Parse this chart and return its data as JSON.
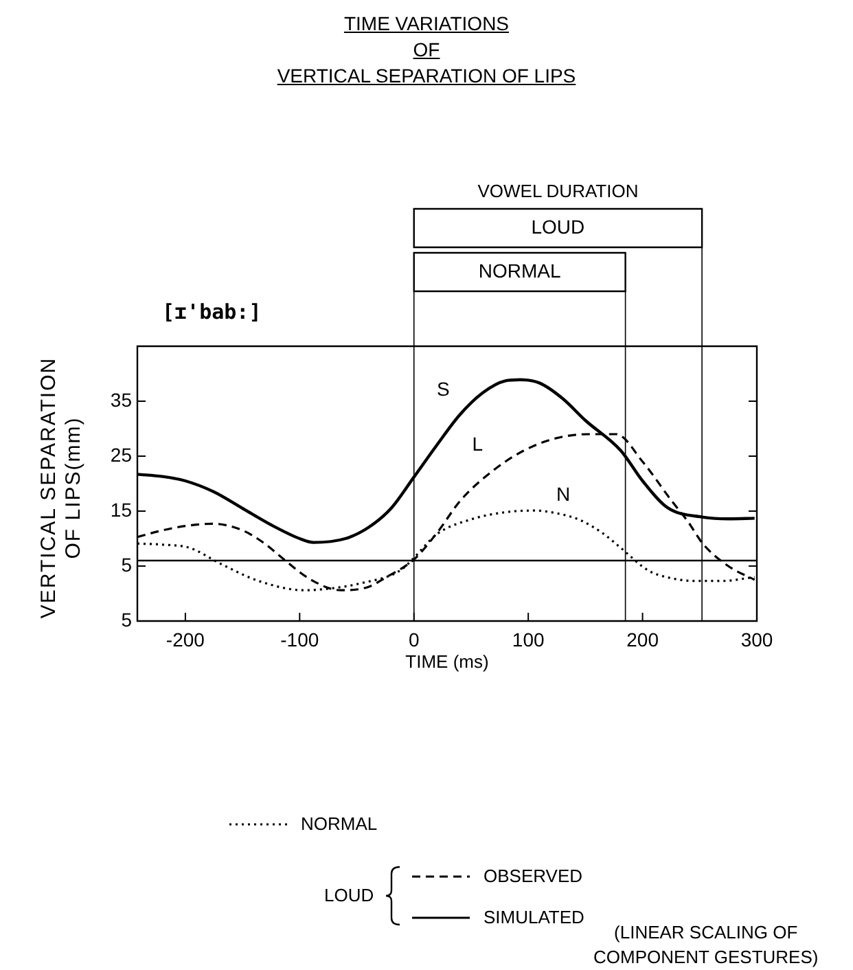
{
  "chart_data": {
    "type": "line",
    "title": "TIME VARIATIONS\nOF\nVERTICAL SEPARATION OF LIPS",
    "xlabel": "TIME (ms)",
    "ylabel": "VERTICAL SEPARATION\nOF LIPS(mm)",
    "xlim": [
      -242,
      300
    ],
    "xticks": [
      -200,
      -100,
      0,
      100,
      200,
      300
    ],
    "ylim": [
      -5,
      45
    ],
    "yticks": [
      {
        "value": -5,
        "label": "5"
      },
      5,
      15,
      25,
      35
    ],
    "grid": false,
    "legend": "bottom",
    "marker": "none",
    "series": [
      {
        "name": "NORMAL",
        "color": "#000000",
        "line_style": "dotted",
        "x": [
          -242,
          -220,
          -196,
          -169,
          -136,
          -96,
          -70,
          -48,
          -12,
          0,
          20,
          50,
          80,
          105,
          125,
          145,
          165,
          181,
          205,
          225,
          246,
          270,
          298
        ],
        "values": [
          9.1,
          8.9,
          8.3,
          5.4,
          2.3,
          0.6,
          1,
          1.8,
          4.2,
          6.5,
          10.8,
          13.5,
          14.8,
          15.1,
          14.6,
          13.4,
          11,
          8.3,
          4.2,
          2.8,
          2.3,
          2.3,
          3
        ]
      },
      {
        "name": "OBSERVED",
        "color": "#000000",
        "line_style": "dashed",
        "x": [
          -242,
          -220,
          -200,
          -176,
          -150,
          -130,
          -116,
          -90,
          -64,
          -40,
          -24,
          0,
          20,
          41,
          70,
          96,
          125,
          153,
          177,
          200,
          225,
          240,
          253,
          275,
          298
        ],
        "values": [
          10.3,
          11.5,
          12.3,
          12.7,
          11.5,
          9,
          6.6,
          2.5,
          0.6,
          1.2,
          3,
          6.2,
          11,
          17,
          22.5,
          26,
          28.3,
          29,
          29,
          24,
          17,
          13,
          9,
          5,
          2.5
        ]
      },
      {
        "name": "SIMULATED",
        "color": "#000000",
        "line_style": "solid",
        "x": [
          -242,
          -220,
          -200,
          -175,
          -150,
          -125,
          -100,
          -88,
          -60,
          -40,
          -20,
          0,
          20,
          40,
          60,
          80,
          93,
          110,
          130,
          150,
          181,
          200,
          222,
          253,
          275,
          298
        ],
        "values": [
          21.7,
          21.3,
          20.5,
          18.5,
          15.5,
          12.5,
          10,
          9.3,
          10,
          12,
          15.5,
          21.2,
          27,
          32.5,
          36.5,
          38.7,
          38.9,
          38.3,
          35.5,
          31.5,
          26,
          20.5,
          15.6,
          13.9,
          13.6,
          13.7
        ]
      }
    ],
    "ref_lines": [
      {
        "axis": "y",
        "value": 6
      },
      {
        "axis": "x",
        "value": 0
      },
      {
        "axis": "x",
        "value": 252
      },
      {
        "axis": "x",
        "value": 185
      }
    ],
    "annotations": [
      "[ɪ'bab:]",
      "VOWEL DURATION",
      "LOUD",
      "NORMAL",
      "LOUD",
      "(LINEAR SCALING OF\nCOMPONENT GESTURES)",
      {
        "text": "S",
        "x": 40,
        "y": 32.5
      },
      {
        "text": "L",
        "x": 70,
        "y": 22.5
      },
      {
        "text": "N",
        "x": 145,
        "y": 13.4
      }
    ]
  }
}
